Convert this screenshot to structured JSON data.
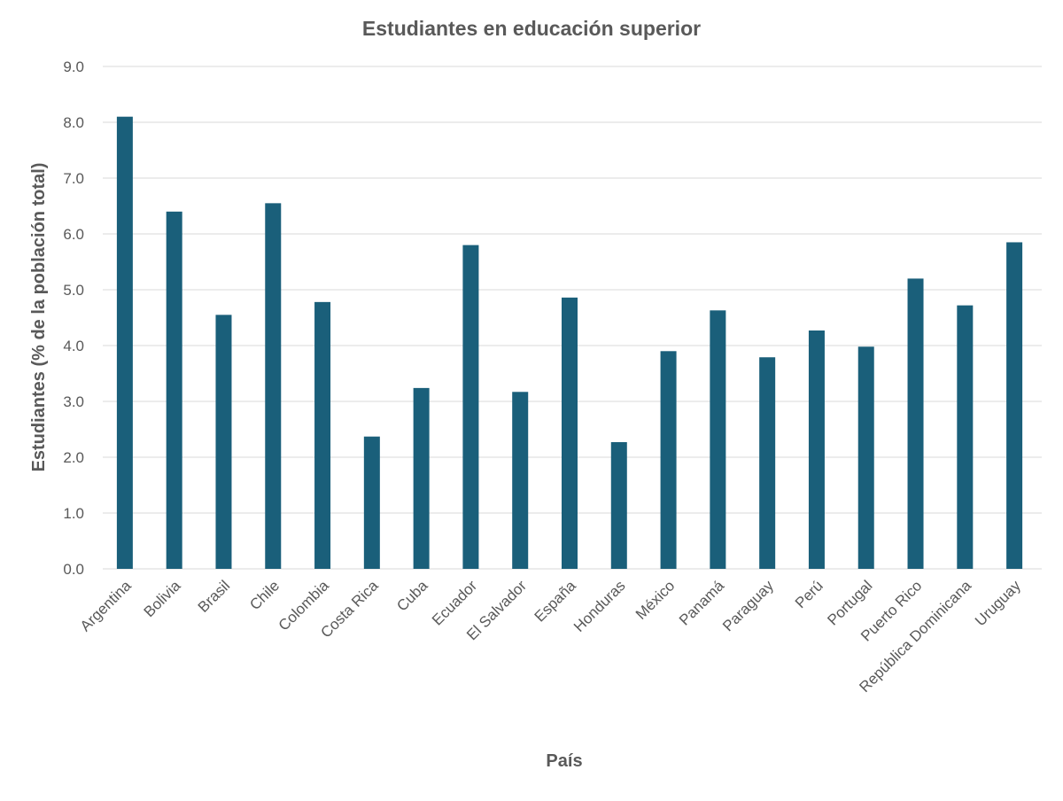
{
  "chart_data": {
    "type": "bar",
    "title": "Estudiantes en educación superior",
    "xlabel": "País",
    "ylabel": "Estudiantes (% de la población total)",
    "ylim": [
      0,
      9
    ],
    "yticks": [
      "0.0",
      "1.0",
      "2.0",
      "3.0",
      "4.0",
      "5.0",
      "6.0",
      "7.0",
      "8.0",
      "9.0"
    ],
    "grid": true,
    "legend": "none",
    "bar_color": "#1a5f7a",
    "categories": [
      "Argentina",
      "Bolivia",
      "Brasil",
      "Chile",
      "Colombia",
      "Costa Rica",
      "Cuba",
      "Ecuador",
      "El Salvador",
      "España",
      "Honduras",
      "México",
      "Panamá",
      "Paraguay",
      "Perú",
      "Portugal",
      "Puerto Rico",
      "República Dominicana",
      "Uruguay"
    ],
    "values": [
      8.1,
      6.4,
      4.55,
      6.55,
      4.78,
      2.37,
      3.24,
      5.8,
      3.17,
      4.86,
      2.27,
      3.9,
      4.63,
      3.79,
      4.27,
      3.98,
      5.2,
      4.72,
      5.85
    ]
  }
}
